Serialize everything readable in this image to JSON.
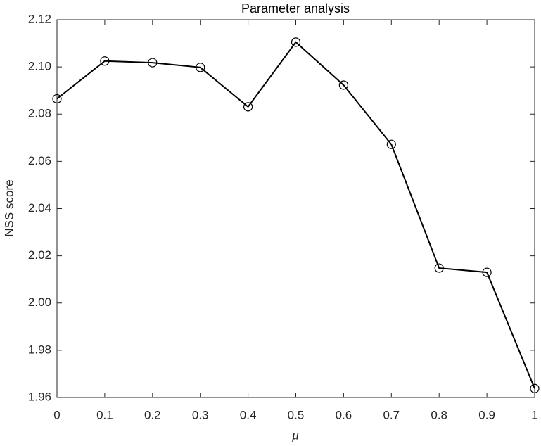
{
  "chart_data": {
    "type": "line",
    "title": "Parameter analysis",
    "xlabel": "μ",
    "ylabel": "NSS score",
    "x": [
      0,
      0.1,
      0.2,
      0.3,
      0.4,
      0.5,
      0.6,
      0.7,
      0.8,
      0.9,
      1
    ],
    "y": [
      2.0865,
      2.1025,
      2.1018,
      2.0998,
      2.0831,
      2.1105,
      2.0923,
      2.0672,
      2.0148,
      2.013,
      1.9638
    ],
    "color": "#000000",
    "xlim": [
      0,
      1
    ],
    "xticks": [
      0,
      0.1,
      0.2,
      0.3,
      0.4,
      0.5,
      0.6,
      0.7,
      0.8,
      0.9,
      1
    ],
    "ylim": [
      1.96,
      2.12
    ],
    "yticks": [
      1.96,
      1.98,
      {
        "value": 2,
        "label": "2.00"
      },
      2.02,
      2.04,
      2.06,
      2.08,
      {
        "value": 2.1,
        "label": "2.10"
      },
      2.12
    ]
  }
}
